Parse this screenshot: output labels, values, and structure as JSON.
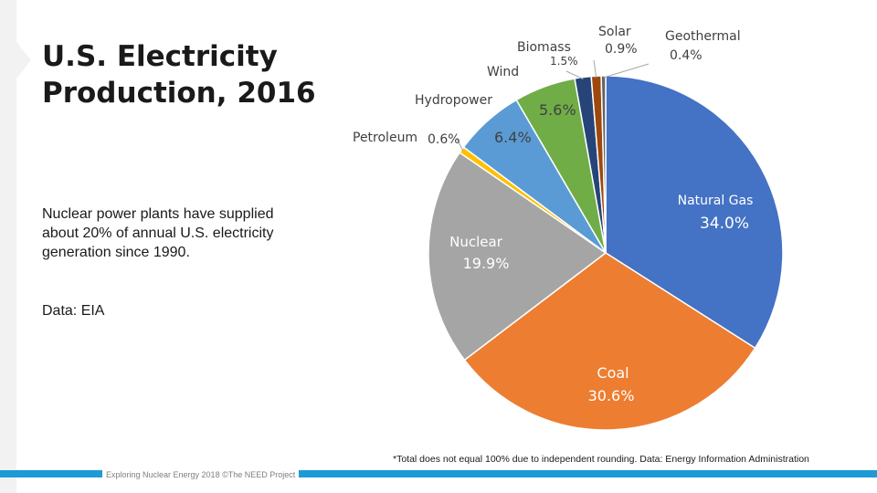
{
  "slide": {
    "title_line1": "U.S. Electricity",
    "title_line2": "Production, 2016",
    "body": "Nuclear power plants have supplied about 20% of annual U.S. electricity generation since 1990.",
    "data_source": "Data: EIA",
    "footnote": "*Total does not equal 100% due to independent rounding. Data: Energy Information Administration",
    "footer": "Exploring Nuclear Energy 2018 ©The NEED Project",
    "accent_color": "#1e9ad6"
  },
  "chart_data": {
    "type": "pie",
    "title": "U.S. Electricity Production, 2016",
    "unit": "%",
    "slices": [
      {
        "name": "Natural Gas",
        "value": 34.0,
        "label": "34.0%",
        "color": "#4472c4"
      },
      {
        "name": "Coal",
        "value": 30.6,
        "label": "30.6%",
        "color": "#ed7d31"
      },
      {
        "name": "Nuclear",
        "value": 19.9,
        "label": "19.9%",
        "color": "#a5a5a5"
      },
      {
        "name": "Petroleum",
        "value": 0.6,
        "label": "0.6%",
        "color": "#ffc000"
      },
      {
        "name": "Hydropower",
        "value": 6.4,
        "label": "6.4%",
        "color": "#5b9bd5"
      },
      {
        "name": "Wind",
        "value": 5.6,
        "label": "5.6%",
        "color": "#70ad47"
      },
      {
        "name": "Biomass",
        "value": 1.5,
        "label": "1.5%",
        "color": "#264478"
      },
      {
        "name": "Solar",
        "value": 0.9,
        "label": "0.9%",
        "color": "#9e480e"
      },
      {
        "name": "Geothermal",
        "value": 0.4,
        "label": "0.4%",
        "color": "#636363"
      }
    ]
  }
}
